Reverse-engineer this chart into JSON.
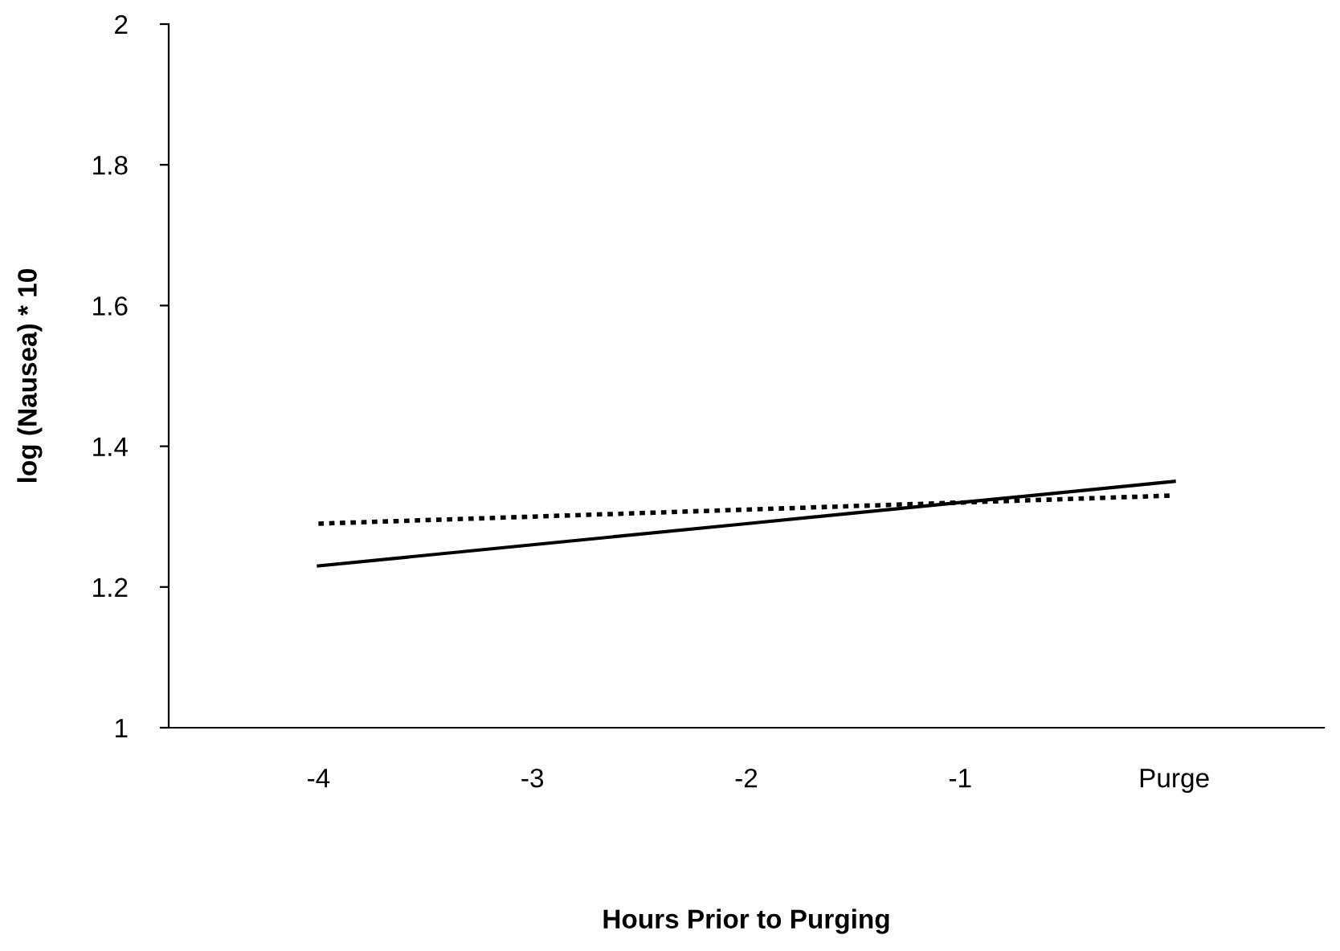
{
  "chart_data": {
    "type": "line",
    "xlabel": "Hours Prior to Purging",
    "ylabel": "log (Nausea) * 10",
    "categories": [
      "-4",
      "-3",
      "-2",
      "-1",
      "Purge"
    ],
    "series": [
      {
        "color": "#000000",
        "line_style": "solid",
        "values": [
          1.23,
          1.26,
          1.29,
          1.32,
          1.35
        ]
      },
      {
        "color": "#000000",
        "line_style": "dotted",
        "values": [
          1.29,
          1.3,
          1.31,
          1.32,
          1.33
        ]
      }
    ],
    "ylim": [
      1,
      2
    ],
    "yticks": [
      1,
      1.2,
      1.4,
      1.6,
      1.8,
      2
    ],
    "grid": false,
    "marker": "none"
  }
}
